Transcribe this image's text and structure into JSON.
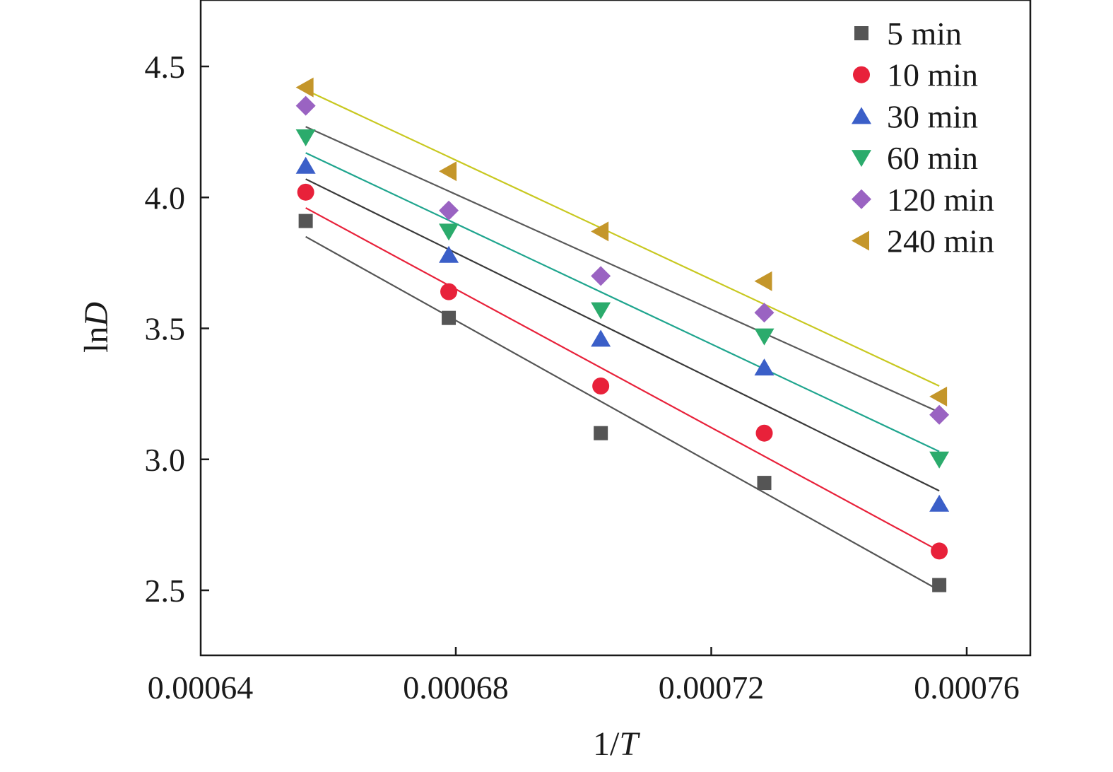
{
  "chart_data": {
    "type": "scatter",
    "xlabel": "1/T",
    "ylabel": "lnD",
    "xlim": [
      0.00064,
      0.000765
    ],
    "ylim": [
      2.25,
      4.75
    ],
    "x_ticks": [
      "0.00064",
      "0.00068",
      "0.00072",
      "0.00076"
    ],
    "y_ticks": [
      "2.5",
      "3.0",
      "3.5",
      "4.0",
      "4.5"
    ],
    "legend_position": "top-right",
    "x": [
      0.0006565,
      0.0006789,
      0.0007027,
      0.0007283,
      0.0007557
    ],
    "series": [
      {
        "name": "5 min",
        "marker": "square",
        "color": "#555555",
        "line_color": "#555555",
        "values": [
          3.91,
          3.54,
          3.1,
          2.91,
          2.52
        ],
        "fit": [
          3.85,
          2.5
        ]
      },
      {
        "name": "10 min",
        "marker": "circle",
        "color": "#e8213a",
        "line_color": "#e8213a",
        "values": [
          4.02,
          3.64,
          3.28,
          3.1,
          2.65
        ],
        "fit": [
          3.96,
          2.65
        ]
      },
      {
        "name": "30 min",
        "marker": "triangle-up",
        "color": "#3b5fc8",
        "line_color": "#3a3a3a",
        "values": [
          4.12,
          3.78,
          3.46,
          3.35,
          2.83
        ],
        "fit": [
          4.07,
          2.88
        ]
      },
      {
        "name": "60 min",
        "marker": "triangle-down",
        "color": "#2bab6c",
        "line_color": "#1fa58e",
        "values": [
          4.23,
          3.87,
          3.57,
          3.47,
          3.0
        ],
        "fit": [
          4.17,
          3.03
        ]
      },
      {
        "name": "120 min",
        "marker": "diamond",
        "color": "#9a63c2",
        "line_color": "#5a5a5a",
        "values": [
          4.35,
          3.95,
          3.7,
          3.56,
          3.17
        ],
        "fit": [
          4.27,
          3.18
        ]
      },
      {
        "name": "240 min",
        "marker": "triangle-left",
        "color": "#c4962a",
        "line_color": "#c8c820",
        "values": [
          4.42,
          4.1,
          3.87,
          3.68,
          3.24
        ],
        "fit": [
          4.41,
          3.28
        ]
      }
    ]
  }
}
